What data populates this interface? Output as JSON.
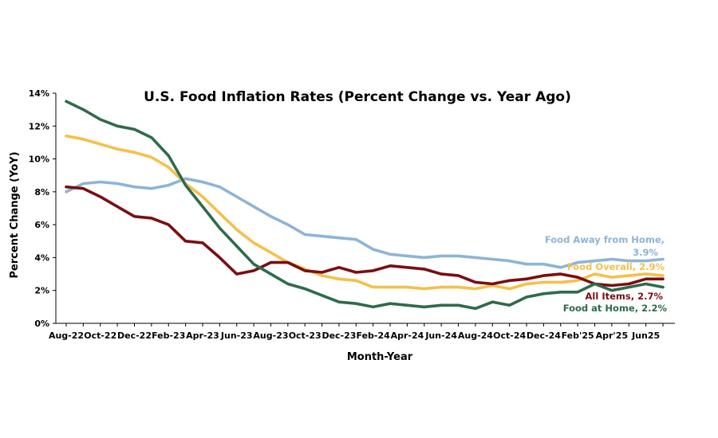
{
  "chart_data": {
    "type": "line",
    "title": "U.S. Food Inflation Rates (Percent Change vs. Year Ago)",
    "xlabel": "Month-Year",
    "ylabel": "Percent Change (YoY)",
    "ylim": [
      0,
      14
    ],
    "yticks": [
      "0%",
      "2%",
      "4%",
      "6%",
      "8%",
      "10%",
      "12%",
      "14%"
    ],
    "xtick_labels": [
      "Aug-22",
      "Oct-22",
      "Dec-22",
      "Feb-23",
      "Apr-23",
      "Jun-23",
      "Aug-23",
      "Oct-23",
      "Dec-23",
      "Feb-24",
      "Apr-24",
      "Jun-24",
      "Aug-24",
      "Oct-24",
      "Dec-24",
      "Feb'25",
      "Apr'25",
      "Jun25"
    ],
    "x": [
      "Aug-22",
      "Sep-22",
      "Oct-22",
      "Nov-22",
      "Dec-22",
      "Jan-23",
      "Feb-23",
      "Mar-23",
      "Apr-23",
      "May-23",
      "Jun-23",
      "Jul-23",
      "Aug-23",
      "Sep-23",
      "Oct-23",
      "Nov-23",
      "Dec-23",
      "Jan-24",
      "Feb-24",
      "Mar-24",
      "Apr-24",
      "May-24",
      "Jun-24",
      "Jul-24",
      "Aug-24",
      "Sep-24",
      "Oct-24",
      "Nov-24",
      "Dec-24",
      "Jan-25",
      "Feb-25",
      "Mar-25",
      "Apr-25",
      "May-25",
      "Jun-25",
      "Jul-25"
    ],
    "grid": false,
    "series": [
      {
        "name": "Food Away from Home",
        "label": "Food Away from Home,",
        "label2": "3.9%",
        "color": "#8DB4D6",
        "values": [
          8.0,
          8.5,
          8.6,
          8.5,
          8.3,
          8.2,
          8.4,
          8.8,
          8.6,
          8.3,
          7.7,
          7.1,
          6.5,
          6.0,
          5.4,
          5.3,
          5.2,
          5.1,
          4.5,
          4.2,
          4.1,
          4.0,
          4.1,
          4.1,
          4.0,
          3.9,
          3.8,
          3.6,
          3.6,
          3.4,
          3.7,
          3.8,
          3.9,
          3.8,
          3.8,
          3.9
        ]
      },
      {
        "name": "Food Overall",
        "label": "Food Overall, 2.9%",
        "color": "#F5C04A",
        "values": [
          11.4,
          11.2,
          10.9,
          10.6,
          10.4,
          10.1,
          9.5,
          8.5,
          7.7,
          6.7,
          5.7,
          4.9,
          4.3,
          3.7,
          3.3,
          2.9,
          2.7,
          2.6,
          2.2,
          2.2,
          2.2,
          2.1,
          2.2,
          2.2,
          2.1,
          2.3,
          2.1,
          2.4,
          2.5,
          2.5,
          2.6,
          3.0,
          2.8,
          2.9,
          3.0,
          2.9
        ]
      },
      {
        "name": "All Items",
        "label": "All Items, 2.7%",
        "color": "#7A0E12",
        "values": [
          8.3,
          8.2,
          7.7,
          7.1,
          6.5,
          6.4,
          6.0,
          5.0,
          4.9,
          4.0,
          3.0,
          3.2,
          3.7,
          3.7,
          3.2,
          3.1,
          3.4,
          3.1,
          3.2,
          3.5,
          3.4,
          3.3,
          3.0,
          2.9,
          2.5,
          2.4,
          2.6,
          2.7,
          2.9,
          3.0,
          2.8,
          2.4,
          2.3,
          2.4,
          2.7,
          2.7
        ]
      },
      {
        "name": "Food at Home",
        "label": "Food at Home, 2.2%",
        "color": "#2E6B4B",
        "values": [
          13.5,
          13.0,
          12.4,
          12.0,
          11.8,
          11.3,
          10.2,
          8.4,
          7.1,
          5.8,
          4.7,
          3.6,
          3.0,
          2.4,
          2.1,
          1.7,
          1.3,
          1.2,
          1.0,
          1.2,
          1.1,
          1.0,
          1.1,
          1.1,
          0.9,
          1.3,
          1.1,
          1.6,
          1.8,
          1.9,
          1.9,
          2.4,
          2.0,
          2.2,
          2.4,
          2.2
        ]
      }
    ]
  }
}
